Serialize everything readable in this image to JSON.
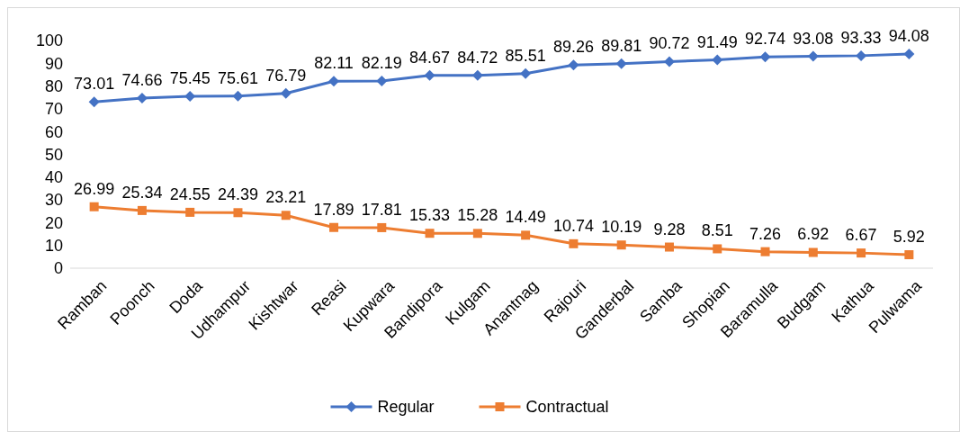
{
  "chart_data": {
    "type": "line",
    "categories": [
      "Ramban",
      "Poonch",
      "Doda",
      "Udhampur",
      "Kishtwar",
      "Reasi",
      "Kupwara",
      "Bandipora",
      "Kulgam",
      "Anantnag",
      "Rajouri",
      "Ganderbal",
      "Samba",
      "Shopian",
      "Baramulla",
      "Budgam",
      "Kathua",
      "Pulwama"
    ],
    "series": [
      {
        "name": "Regular",
        "color": "#4472c4",
        "marker": "diamond",
        "values": [
          73.01,
          74.66,
          75.45,
          75.61,
          76.79,
          82.11,
          82.19,
          84.67,
          84.72,
          85.51,
          89.26,
          89.81,
          90.72,
          91.49,
          92.74,
          93.08,
          93.33,
          94.08
        ]
      },
      {
        "name": "Contractual",
        "color": "#ed7d31",
        "marker": "square",
        "values": [
          26.99,
          25.34,
          24.55,
          24.39,
          23.21,
          17.89,
          17.81,
          15.33,
          15.28,
          14.49,
          10.74,
          10.19,
          9.28,
          8.51,
          7.26,
          6.92,
          6.67,
          5.92
        ]
      }
    ],
    "ylim": [
      0,
      100
    ],
    "yticks": [
      0,
      10,
      20,
      30,
      40,
      50,
      60,
      70,
      80,
      90,
      100
    ],
    "data_labels": true,
    "legend": "bottom",
    "grid": false,
    "line_style": "solid"
  }
}
